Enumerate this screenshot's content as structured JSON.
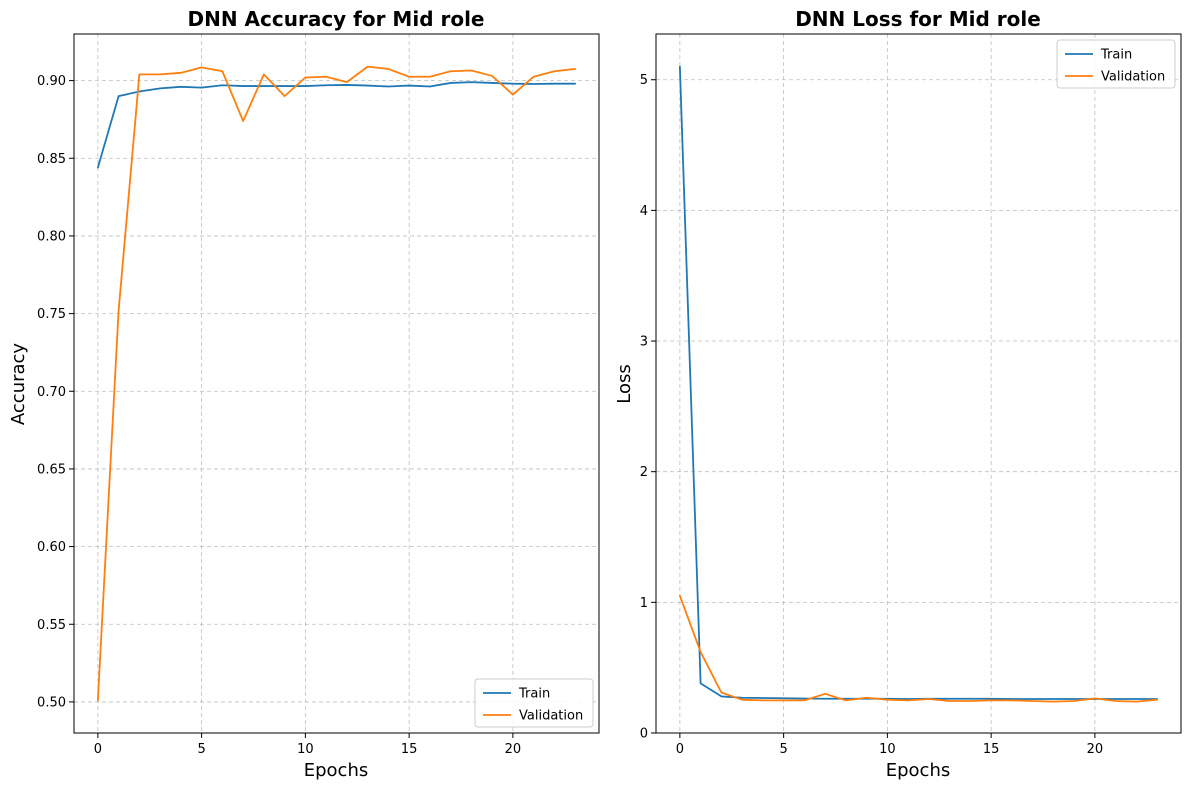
{
  "chart_data": [
    {
      "type": "line",
      "title": "DNN Accuracy for Mid role",
      "xlabel": "Epochs",
      "ylabel": "Accuracy",
      "xlim": [
        -1.15,
        24.15
      ],
      "ylim": [
        0.48,
        0.93
      ],
      "xticks": [
        0,
        5,
        10,
        15,
        20
      ],
      "yticks": [
        0.5,
        0.55,
        0.6,
        0.65,
        0.7,
        0.75,
        0.8,
        0.85,
        0.9
      ],
      "ytick_labels": [
        "0.50",
        "0.55",
        "0.60",
        "0.65",
        "0.70",
        "0.75",
        "0.80",
        "0.85",
        "0.90"
      ],
      "grid": true,
      "legend_position": "lower-right",
      "x": [
        0,
        1,
        2,
        3,
        4,
        5,
        6,
        7,
        8,
        9,
        10,
        11,
        12,
        13,
        14,
        15,
        16,
        17,
        18,
        19,
        20,
        21,
        22,
        23
      ],
      "series": [
        {
          "name": "Train",
          "color": "#1f77b4",
          "values": [
            0.844,
            0.89,
            0.893,
            0.895,
            0.896,
            0.8955,
            0.897,
            0.8965,
            0.8965,
            0.8965,
            0.8965,
            0.897,
            0.8972,
            0.8968,
            0.8962,
            0.8968,
            0.8962,
            0.8985,
            0.899,
            0.8985,
            0.898,
            0.8978,
            0.898,
            0.898
          ]
        },
        {
          "name": "Validation",
          "color": "#ff7f0e",
          "values": [
            0.501,
            0.752,
            0.904,
            0.904,
            0.905,
            0.9085,
            0.906,
            0.874,
            0.904,
            0.89,
            0.902,
            0.9025,
            0.899,
            0.909,
            0.9075,
            0.9025,
            0.9025,
            0.906,
            0.9065,
            0.903,
            0.891,
            0.9025,
            0.906,
            0.9075
          ]
        }
      ]
    },
    {
      "type": "line",
      "title": "DNN Loss for Mid role",
      "xlabel": "Epochs",
      "ylabel": "Loss",
      "xlim": [
        -1.15,
        24.15
      ],
      "ylim": [
        0,
        5.35
      ],
      "xticks": [
        0,
        5,
        10,
        15,
        20
      ],
      "yticks": [
        0,
        1,
        2,
        3,
        4,
        5
      ],
      "ytick_labels": [
        "0",
        "1",
        "2",
        "3",
        "4",
        "5"
      ],
      "grid": true,
      "legend_position": "upper-right",
      "x": [
        0,
        1,
        2,
        3,
        4,
        5,
        6,
        7,
        8,
        9,
        10,
        11,
        12,
        13,
        14,
        15,
        16,
        17,
        18,
        19,
        20,
        21,
        22,
        23
      ],
      "series": [
        {
          "name": "Train",
          "color": "#1f77b4",
          "values": [
            5.1,
            0.38,
            0.28,
            0.27,
            0.268,
            0.266,
            0.264,
            0.262,
            0.262,
            0.262,
            0.262,
            0.26,
            0.262,
            0.262,
            0.262,
            0.262,
            0.26,
            0.26,
            0.26,
            0.26,
            0.26,
            0.26,
            0.26,
            0.26
          ]
        },
        {
          "name": "Validation",
          "color": "#ff7f0e",
          "values": [
            1.05,
            0.62,
            0.31,
            0.255,
            0.25,
            0.25,
            0.25,
            0.3,
            0.25,
            0.27,
            0.255,
            0.25,
            0.26,
            0.245,
            0.245,
            0.25,
            0.25,
            0.245,
            0.24,
            0.245,
            0.265,
            0.245,
            0.24,
            0.255
          ]
        }
      ]
    }
  ]
}
